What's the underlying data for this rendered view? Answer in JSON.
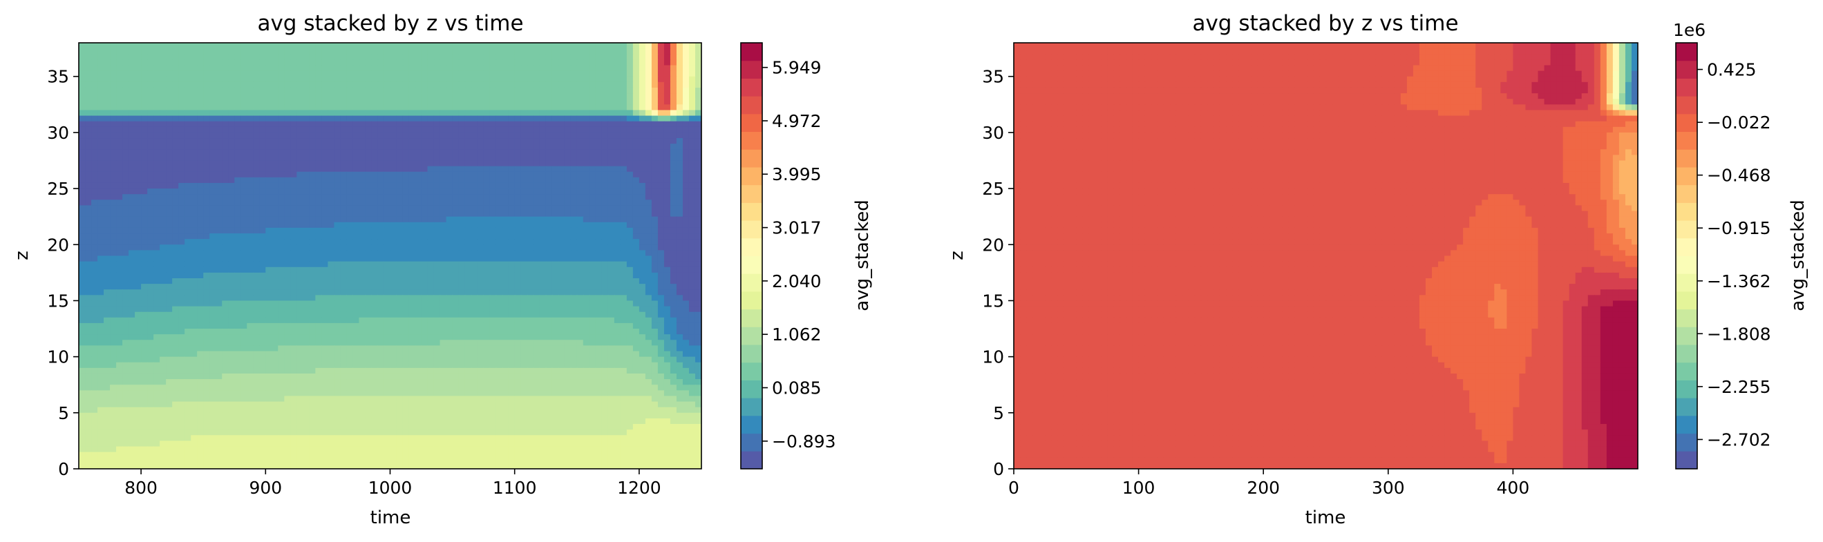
{
  "chart_data": [
    {
      "type": "heatmap",
      "subtype": "filled-contour",
      "title": "avg stacked by z vs time",
      "xlabel": "time",
      "ylabel": "z",
      "xlim": [
        750,
        1250
      ],
      "ylim": [
        0,
        38
      ],
      "xticks": [
        800,
        900,
        1000,
        1100,
        1200
      ],
      "yticks": [
        0,
        5,
        10,
        15,
        20,
        25,
        30,
        35
      ],
      "colormap": "Spectral_r",
      "colorbar": {
        "label": "avg_stacked",
        "range": [
          -1.4,
          6.4
        ],
        "ticks": [
          -0.893,
          0.085,
          1.062,
          2.04,
          3.017,
          3.995,
          4.972,
          5.949
        ],
        "tick_labels": [
          "−0.893",
          "0.085",
          "1.062",
          "2.040",
          "3.017",
          "3.995",
          "4.972",
          "5.949"
        ],
        "offset_label": ""
      },
      "z_grid": {
        "x": [
          750,
          850,
          950,
          1050,
          1150,
          1190,
          1210,
          1220,
          1230,
          1240,
          1250
        ],
        "y": [
          0,
          4,
          8,
          12,
          16,
          20,
          24,
          28,
          31,
          32,
          36,
          38
        ],
        "values": [
          [
            1.6,
            1.6,
            1.6,
            1.6,
            1.6,
            1.6,
            1.6,
            1.6,
            1.6,
            1.6,
            1.6
          ],
          [
            1.4,
            1.5,
            1.5,
            1.5,
            1.5,
            1.5,
            1.6,
            1.6,
            1.6,
            1.6,
            1.6
          ],
          [
            0.7,
            0.9,
            1.0,
            1.0,
            1.0,
            1.0,
            0.9,
            0.6,
            0.3,
            0.0,
            -0.1
          ],
          [
            0.0,
            0.3,
            0.4,
            0.45,
            0.45,
            0.4,
            0.1,
            -0.3,
            -0.7,
            -0.9,
            -1.0
          ],
          [
            -0.5,
            -0.3,
            -0.2,
            -0.15,
            -0.15,
            -0.2,
            -0.5,
            -0.9,
            -1.1,
            -1.2,
            -1.2
          ],
          [
            -0.9,
            -0.7,
            -0.6,
            -0.55,
            -0.55,
            -0.6,
            -0.9,
            -1.2,
            -1.3,
            -1.3,
            -1.3
          ],
          [
            -1.1,
            -1.0,
            -0.95,
            -0.9,
            -0.9,
            -0.9,
            -1.1,
            -1.3,
            -0.8,
            -1.2,
            -1.3
          ],
          [
            -1.2,
            -1.2,
            -1.15,
            -1.15,
            -1.15,
            -1.15,
            -1.2,
            -1.3,
            -0.9,
            -1.2,
            -1.3
          ],
          [
            -1.2,
            -1.2,
            -1.2,
            -1.2,
            -1.2,
            -1.2,
            -1.2,
            -1.2,
            -1.2,
            -1.2,
            -1.2
          ],
          [
            0.3,
            0.3,
            0.3,
            0.3,
            0.3,
            0.3,
            3.0,
            6.0,
            3.5,
            2.0,
            0.8
          ],
          [
            0.3,
            0.3,
            0.3,
            0.3,
            0.3,
            0.3,
            3.0,
            6.4,
            3.8,
            2.2,
            1.0
          ],
          [
            0.3,
            0.3,
            0.3,
            0.3,
            0.3,
            0.3,
            3.0,
            6.4,
            3.8,
            2.2,
            1.0
          ]
        ]
      }
    },
    {
      "type": "heatmap",
      "subtype": "filled-contour",
      "title": "avg stacked by z vs time",
      "xlabel": "time",
      "ylabel": "z",
      "xlim": [
        0,
        500
      ],
      "ylim": [
        0,
        38
      ],
      "xticks": [
        0,
        100,
        200,
        300,
        400
      ],
      "yticks": [
        0,
        5,
        10,
        15,
        20,
        25,
        30,
        35
      ],
      "colormap": "Spectral_r",
      "colorbar": {
        "label": "avg_stacked",
        "range": [
          -2.95,
          0.65
        ],
        "ticks": [
          -2.702,
          -2.255,
          -1.808,
          -1.362,
          -0.915,
          -0.468,
          -0.022,
          0.425
        ],
        "tick_labels": [
          "−2.702",
          "−2.255",
          "−1.808",
          "−1.362",
          "−0.915",
          "−0.468",
          "−0.022",
          "0.425"
        ],
        "offset_label": "1e6"
      },
      "z_grid": {
        "x": [
          0,
          300,
          360,
          390,
          420,
          440,
          460,
          470,
          480,
          490,
          500
        ],
        "y": [
          0,
          8,
          14,
          20,
          26,
          30,
          31.5,
          32.5,
          34,
          36,
          38
        ],
        "values": [
          [
            0.08,
            0.08,
            0.08,
            0.05,
            0.1,
            0.2,
            0.35,
            0.45,
            0.55,
            0.6,
            0.6
          ],
          [
            0.08,
            0.08,
            0.05,
            0.0,
            0.1,
            0.2,
            0.4,
            0.5,
            0.6,
            0.65,
            0.65
          ],
          [
            0.08,
            0.08,
            0.0,
            -0.15,
            0.05,
            0.2,
            0.4,
            0.5,
            0.6,
            0.65,
            0.65
          ],
          [
            0.08,
            0.08,
            0.05,
            -0.05,
            0.05,
            0.1,
            0.1,
            0.0,
            -0.1,
            -0.2,
            -0.3
          ],
          [
            0.08,
            0.08,
            0.08,
            0.08,
            0.08,
            0.05,
            0.0,
            -0.1,
            -0.25,
            -0.55,
            -0.5
          ],
          [
            0.08,
            0.08,
            0.08,
            0.08,
            0.08,
            0.05,
            0.0,
            -0.05,
            -0.15,
            -0.3,
            -0.3
          ],
          [
            0.08,
            0.08,
            0.08,
            0.08,
            0.08,
            0.08,
            0.08,
            0.08,
            0.08,
            0.08,
            0.08
          ],
          [
            0.08,
            0.08,
            -0.1,
            0.15,
            0.3,
            0.4,
            0.3,
            0.0,
            -1.0,
            -2.3,
            -2.9
          ],
          [
            0.08,
            0.08,
            -0.05,
            0.2,
            0.4,
            0.5,
            0.35,
            0.05,
            -0.9,
            -2.2,
            -2.9
          ],
          [
            0.08,
            0.08,
            0.0,
            0.15,
            0.3,
            0.4,
            0.3,
            0.05,
            -0.8,
            -2.1,
            -2.8
          ],
          [
            0.08,
            0.08,
            0.0,
            0.15,
            0.3,
            0.4,
            0.3,
            0.05,
            -0.8,
            -2.1,
            -2.8
          ]
        ]
      }
    }
  ]
}
